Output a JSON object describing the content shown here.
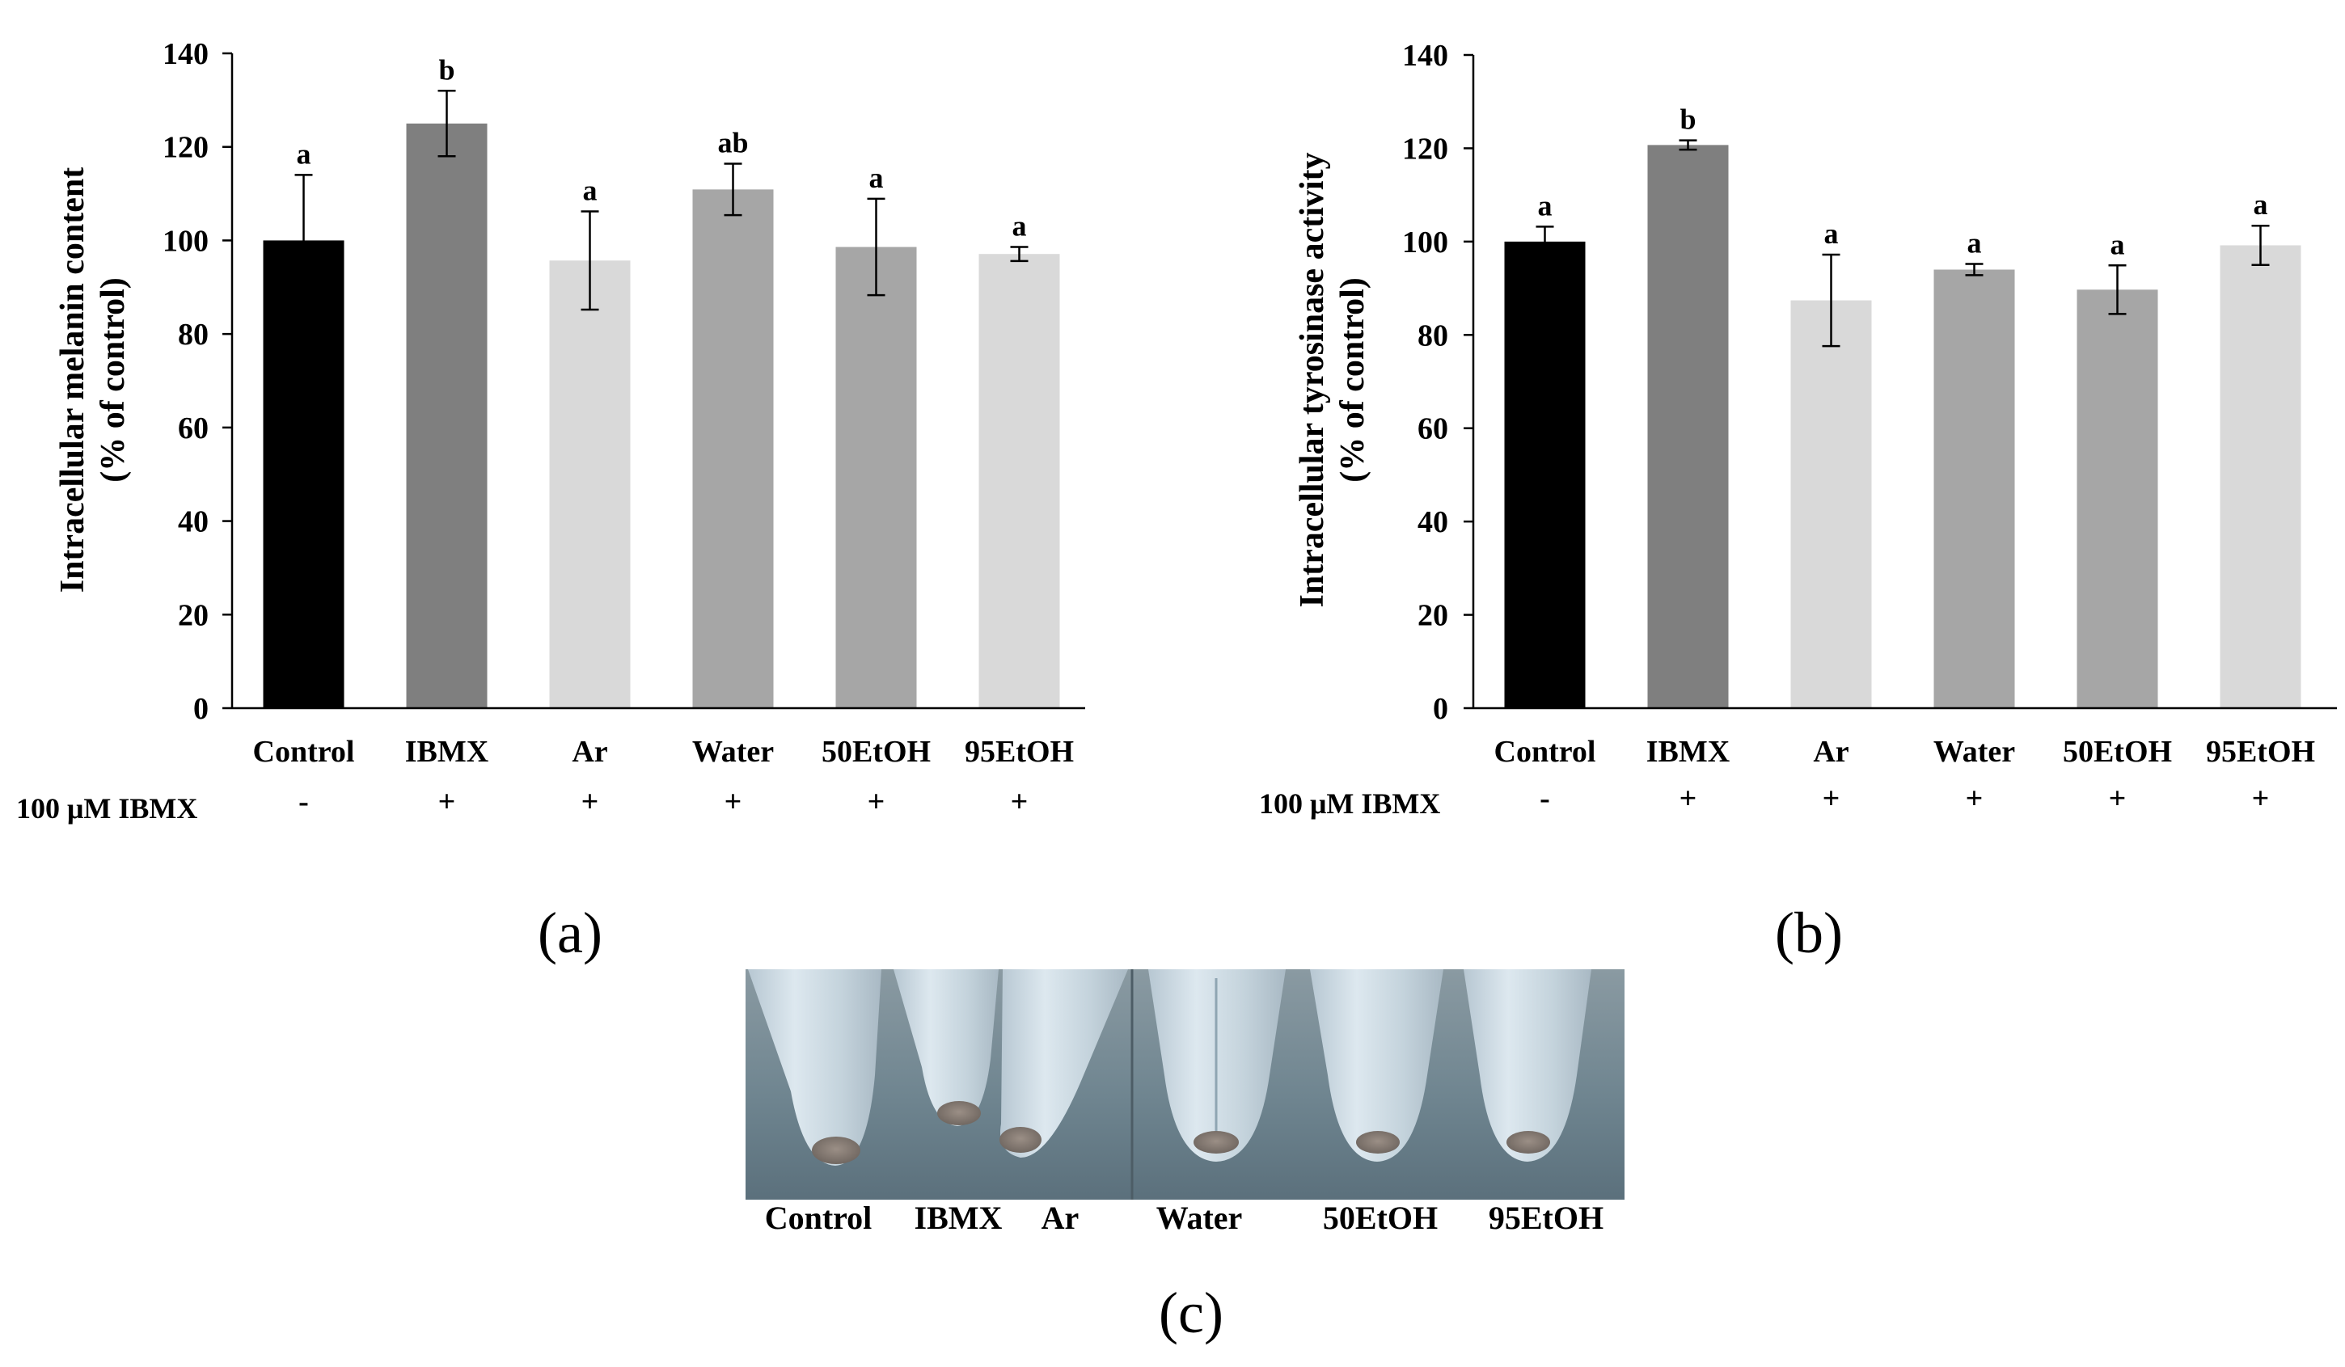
{
  "chart_data": [
    {
      "panel_label": "(a)",
      "type": "bar",
      "ylabel_line1": "Intracellular melanin content",
      "ylabel_line2": "(% of control)",
      "xlabel": "",
      "ylim": [
        0,
        140
      ],
      "yticks": [
        "0",
        "20",
        "40",
        "60",
        "80",
        "100",
        "120",
        "140"
      ],
      "categories": [
        "Control",
        "IBMX",
        "Ar",
        "Water",
        "50EtOH",
        "95EtOH"
      ],
      "values": [
        100,
        125,
        95.7,
        110.9,
        98.6,
        97.1
      ],
      "errors": [
        14,
        7,
        10.5,
        5.5,
        10.3,
        1.5
      ],
      "significance": [
        "a",
        "b",
        "a",
        "ab",
        "a",
        "a"
      ],
      "colors": [
        "#000000",
        "#7f7f7f",
        "#d9d9d9",
        "#a6a6a6",
        "#a6a6a6",
        "#d9d9d9"
      ],
      "treatment_label": "100 μM IBMX",
      "treatment_signs": [
        "-",
        "+",
        "+",
        "+",
        "+",
        "+"
      ]
    },
    {
      "panel_label": "(b)",
      "type": "bar",
      "ylabel_line1": "Intracellular tyrosinase activity",
      "ylabel_line2": "(% of control)",
      "xlabel": "",
      "ylim": [
        0,
        140
      ],
      "yticks": [
        "0",
        "20",
        "40",
        "60",
        "80",
        "100",
        "120",
        "140"
      ],
      "categories": [
        "Control",
        "IBMX",
        "Ar",
        "Water",
        "50EtOH",
        "95EtOH"
      ],
      "values": [
        100,
        120.7,
        87.4,
        94,
        89.7,
        99.2
      ],
      "errors": [
        3.2,
        1,
        9.8,
        1.2,
        5.2,
        4.2
      ],
      "significance": [
        "a",
        "b",
        "a",
        "a",
        "a",
        "a"
      ],
      "colors": [
        "#000000",
        "#7f7f7f",
        "#d9d9d9",
        "#a6a6a6",
        "#a6a6a6",
        "#d9d9d9"
      ],
      "treatment_label": "100 μM IBMX",
      "treatment_signs": [
        "-",
        "+",
        "+",
        "+",
        "+",
        "+"
      ]
    }
  ],
  "photo_panel": {
    "panel_label": "(c)",
    "tube_labels": [
      "Control",
      "IBMX",
      "Ar",
      "Water",
      "50EtOH",
      "95EtOH"
    ]
  }
}
